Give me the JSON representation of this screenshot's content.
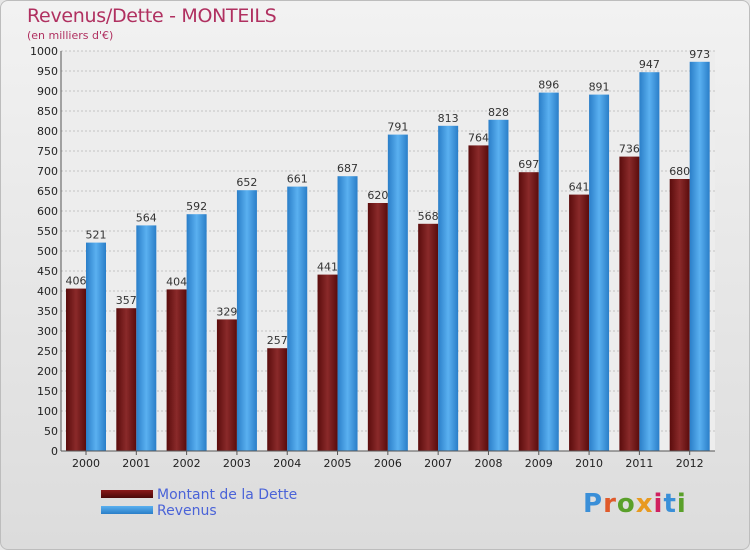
{
  "title": "Revenus/Dette - MONTEILS",
  "subtitle": "(en milliers d'€)",
  "logo": {
    "text": "Proxiti",
    "colors": [
      "#3a8fd8",
      "#e05a2a",
      "#5aa02a",
      "#e89a20",
      "#d02060",
      "#3a8fd8",
      "#5aa02a"
    ]
  },
  "chart_data": {
    "type": "bar",
    "categories": [
      "2000",
      "2001",
      "2002",
      "2003",
      "2004",
      "2005",
      "2006",
      "2007",
      "2008",
      "2009",
      "2010",
      "2011",
      "2012"
    ],
    "series": [
      {
        "name": "Montant de la Dette",
        "color": "#7a1a1a",
        "values": [
          406,
          357,
          404,
          329,
          257,
          441,
          620,
          568,
          764,
          697,
          641,
          736,
          680
        ]
      },
      {
        "name": "Revenus",
        "color": "#3c9be0",
        "values": [
          521,
          564,
          592,
          652,
          661,
          687,
          791,
          813,
          828,
          896,
          891,
          947,
          973
        ]
      }
    ],
    "ylim": [
      0,
      1000
    ],
    "ytick_step": 50,
    "grid": true,
    "legend": "bottom-left"
  }
}
